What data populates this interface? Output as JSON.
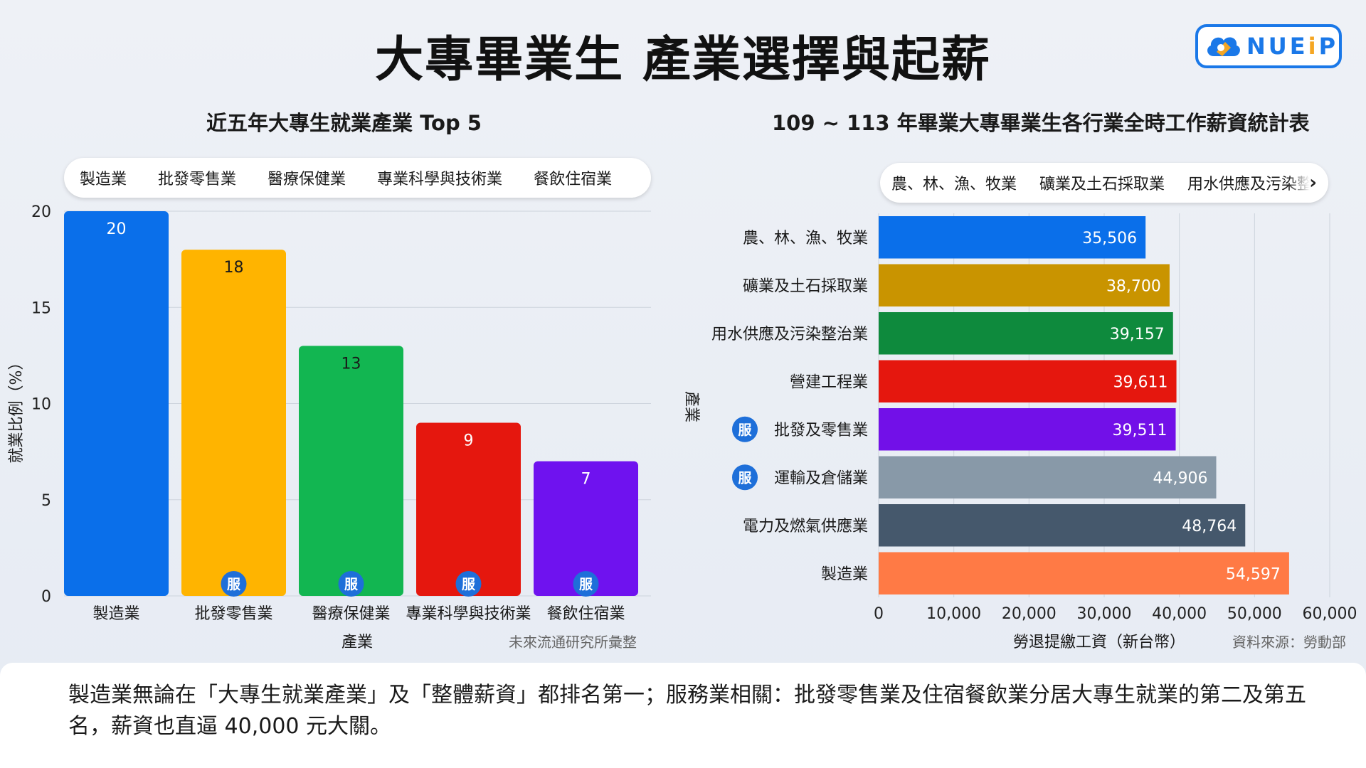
{
  "page_title": "大專畢業生 產業選擇與起薪",
  "logo": {
    "text_main": "NUE",
    "text_accent": "i",
    "text_end": "P"
  },
  "service_badge": "服",
  "footer_text": "製造業無論在「大專生就業產業」及「整體薪資」都排名第一；服務業相關：批發零售業及住宿餐飲業分居大專生就業的第二及第五名，薪資也直逼 40,000 元大關。",
  "chart_data": [
    {
      "type": "bar",
      "title": "近五年大專生就業產業 Top 5",
      "categories": [
        "製造業",
        "批發零售業",
        "醫療保健業",
        "專業科學與技術業",
        "餐飲住宿業"
      ],
      "values": [
        20,
        18,
        13,
        9,
        7
      ],
      "value_labels": [
        "20",
        "18",
        "13",
        "9",
        "7"
      ],
      "colors": [
        "#0a6fea",
        "#ffb400",
        "#12b651",
        "#e5170e",
        "#6f12ef"
      ],
      "service_flags": [
        false,
        true,
        true,
        true,
        true
      ],
      "xlabel": "產業",
      "ylabel": "就業比例（%）",
      "ylim": [
        0,
        20
      ],
      "yticks": [
        "0",
        "5",
        "10",
        "15",
        "20"
      ],
      "legend": [
        "製造業",
        "批發零售業",
        "醫療保健業",
        "專業科學與技術業",
        "餐飲住宿業"
      ],
      "legend_position": "top",
      "grid": true,
      "source": "未來流通研究所彙整"
    },
    {
      "type": "bar",
      "orientation": "horizontal",
      "title": "109 ~ 113 年畢業大專畢業生各行業全時工作薪資統計表",
      "categories": [
        "農、林、漁、牧業",
        "礦業及土石採取業",
        "用水供應及污染整治業",
        "營建工程業",
        "批發及零售業",
        "運輸及倉儲業",
        "電力及燃氣供應業",
        "製造業"
      ],
      "values": [
        35506,
        38700,
        39157,
        39611,
        39511,
        44906,
        48764,
        54597
      ],
      "value_labels": [
        "35,506",
        "38,700",
        "39,157",
        "39,611",
        "39,511",
        "44,906",
        "48,764",
        "54,597"
      ],
      "colors": [
        "#0a6fea",
        "#c99400",
        "#0e8a3d",
        "#e5170e",
        "#7210e8",
        "#8899a8",
        "#45586c",
        "#ff7a45"
      ],
      "service_flags": [
        false,
        false,
        false,
        false,
        true,
        true,
        false,
        false
      ],
      "xlabel": "勞退提繳工資（新台幣）",
      "ylabel": "產業",
      "xlim": [
        0,
        60000
      ],
      "xticks": [
        "0",
        "10,000",
        "20,000",
        "30,000",
        "40,000",
        "50,000",
        "60,000"
      ],
      "legend": [
        "農、林、漁、牧業",
        "礦業及土石採取業",
        "用水供應及污染整治業"
      ],
      "legend_position": "top",
      "grid": true,
      "source": "資料來源：勞動部"
    }
  ]
}
